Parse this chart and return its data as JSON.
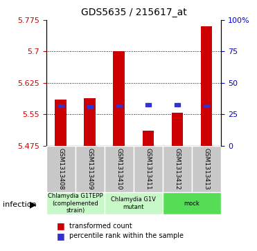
{
  "title": "GDS5635 / 215617_at",
  "samples": [
    "GSM1313408",
    "GSM1313409",
    "GSM1313410",
    "GSM1313411",
    "GSM1313412",
    "GSM1313413"
  ],
  "bar_tops": [
    5.585,
    5.588,
    5.7,
    5.51,
    5.553,
    5.76
  ],
  "bar_bottoms": [
    5.475,
    5.475,
    5.475,
    5.475,
    5.475,
    5.475
  ],
  "blue_values": [
    5.57,
    5.568,
    5.57,
    5.573,
    5.573,
    5.57
  ],
  "ylim": [
    5.475,
    5.775
  ],
  "yticks_left": [
    5.475,
    5.55,
    5.625,
    5.7,
    5.775
  ],
  "yticks_left_labels": [
    "5.475",
    "5.55",
    "5.625",
    "5.7",
    "5.775"
  ],
  "yticks_right": [
    0,
    25,
    50,
    75,
    100
  ],
  "yticks_right_labels": [
    "0",
    "25",
    "50",
    "75",
    "100%"
  ],
  "bar_color": "#cc0000",
  "blue_color": "#3333cc",
  "grid_color": "#000000",
  "left_tick_color": "#cc0000",
  "right_tick_color": "#0000cc",
  "groups": [
    {
      "label": "Chlamydia G1TEPP\n(complemented\nstrain)",
      "start": 0,
      "end": 2,
      "color": "#ccffcc"
    },
    {
      "label": "Chlamydia G1V\nmutant",
      "start": 2,
      "end": 4,
      "color": "#ccffcc"
    },
    {
      "label": "mock",
      "start": 4,
      "end": 6,
      "color": "#66dd66"
    }
  ],
  "group_colors": [
    "#ccffcc",
    "#ccffcc",
    "#66dd66"
  ],
  "infection_label": "infection",
  "legend_items": [
    {
      "label": "transformed count",
      "color": "#cc0000",
      "marker": "s"
    },
    {
      "label": "percentile rank within the sample",
      "color": "#3333cc",
      "marker": "s"
    }
  ],
  "bar_width": 0.4,
  "blue_size": 0.015,
  "xlabel_rotation": 270,
  "bg_gray": "#d0d0d0",
  "sample_bg_color": "#c8c8c8"
}
